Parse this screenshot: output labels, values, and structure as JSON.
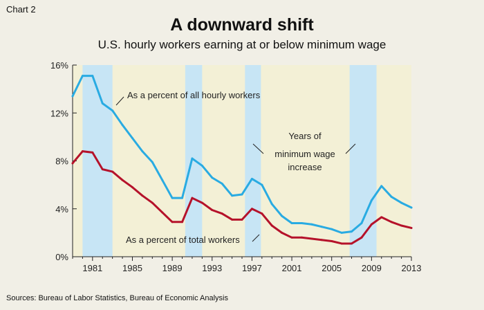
{
  "chart_label": "Chart 2",
  "chart_data": {
    "type": "line",
    "title": "A downward shift",
    "subtitle": "U.S. hourly workers earning at or below minimum wage",
    "xlim": [
      1979,
      2013
    ],
    "ylim": [
      0,
      16
    ],
    "yticks": [
      0,
      4,
      8,
      12,
      16
    ],
    "ytick_labels": [
      "0%",
      "4%",
      "8%",
      "12%",
      "16%"
    ],
    "xticks": [
      1981,
      1985,
      1989,
      1993,
      1997,
      2001,
      2005,
      2009,
      2013
    ],
    "xtick_labels": [
      "1981",
      "1985",
      "1989",
      "1993",
      "1997",
      "2001",
      "2005",
      "2009",
      "2013"
    ],
    "x": [
      1979,
      1980,
      1981,
      1982,
      1983,
      1984,
      1985,
      1986,
      1987,
      1988,
      1989,
      1990,
      1991,
      1992,
      1993,
      1994,
      1995,
      1996,
      1997,
      1998,
      1999,
      2000,
      2001,
      2002,
      2003,
      2004,
      2005,
      2006,
      2007,
      2008,
      2009,
      2010,
      2011,
      2012,
      2013
    ],
    "series": [
      {
        "name": "As a percent of all hourly workers",
        "color": "#29abe2",
        "values": [
          13.4,
          15.1,
          15.1,
          12.8,
          12.2,
          11.0,
          9.9,
          8.8,
          7.9,
          6.4,
          4.9,
          4.9,
          8.2,
          7.6,
          6.6,
          6.1,
          5.1,
          5.2,
          6.5,
          6.0,
          4.4,
          3.4,
          2.8,
          2.8,
          2.7,
          2.5,
          2.3,
          2.0,
          2.1,
          2.8,
          4.7,
          5.9,
          5.0,
          4.5,
          4.1
        ]
      },
      {
        "name": "As a percent of total workers",
        "color": "#b5122a",
        "values": [
          7.8,
          8.8,
          8.7,
          7.3,
          7.1,
          6.4,
          5.8,
          5.1,
          4.5,
          3.7,
          2.9,
          2.9,
          4.9,
          4.5,
          3.9,
          3.6,
          3.1,
          3.1,
          4.0,
          3.6,
          2.6,
          2.0,
          1.6,
          1.6,
          1.5,
          1.4,
          1.3,
          1.1,
          1.1,
          1.6,
          2.7,
          3.3,
          2.9,
          2.6,
          2.4
        ]
      }
    ],
    "shaded_ranges": [
      [
        1980,
        1983
      ],
      [
        1990.3,
        1992
      ],
      [
        1996.3,
        1997.9
      ],
      [
        2006.8,
        2009.5
      ]
    ],
    "shade_color": "#c7e5f5",
    "plot_bg": "#f3f0d6",
    "annotations": [
      {
        "text": "As a percent of all hourly workers"
      },
      {
        "text_lines": [
          "Years of",
          "minimum wage",
          "increase"
        ]
      },
      {
        "text": "As a percent of total workers"
      }
    ]
  },
  "source": "Sources: Bureau of Labor Statistics, Bureau of Economic Analysis"
}
